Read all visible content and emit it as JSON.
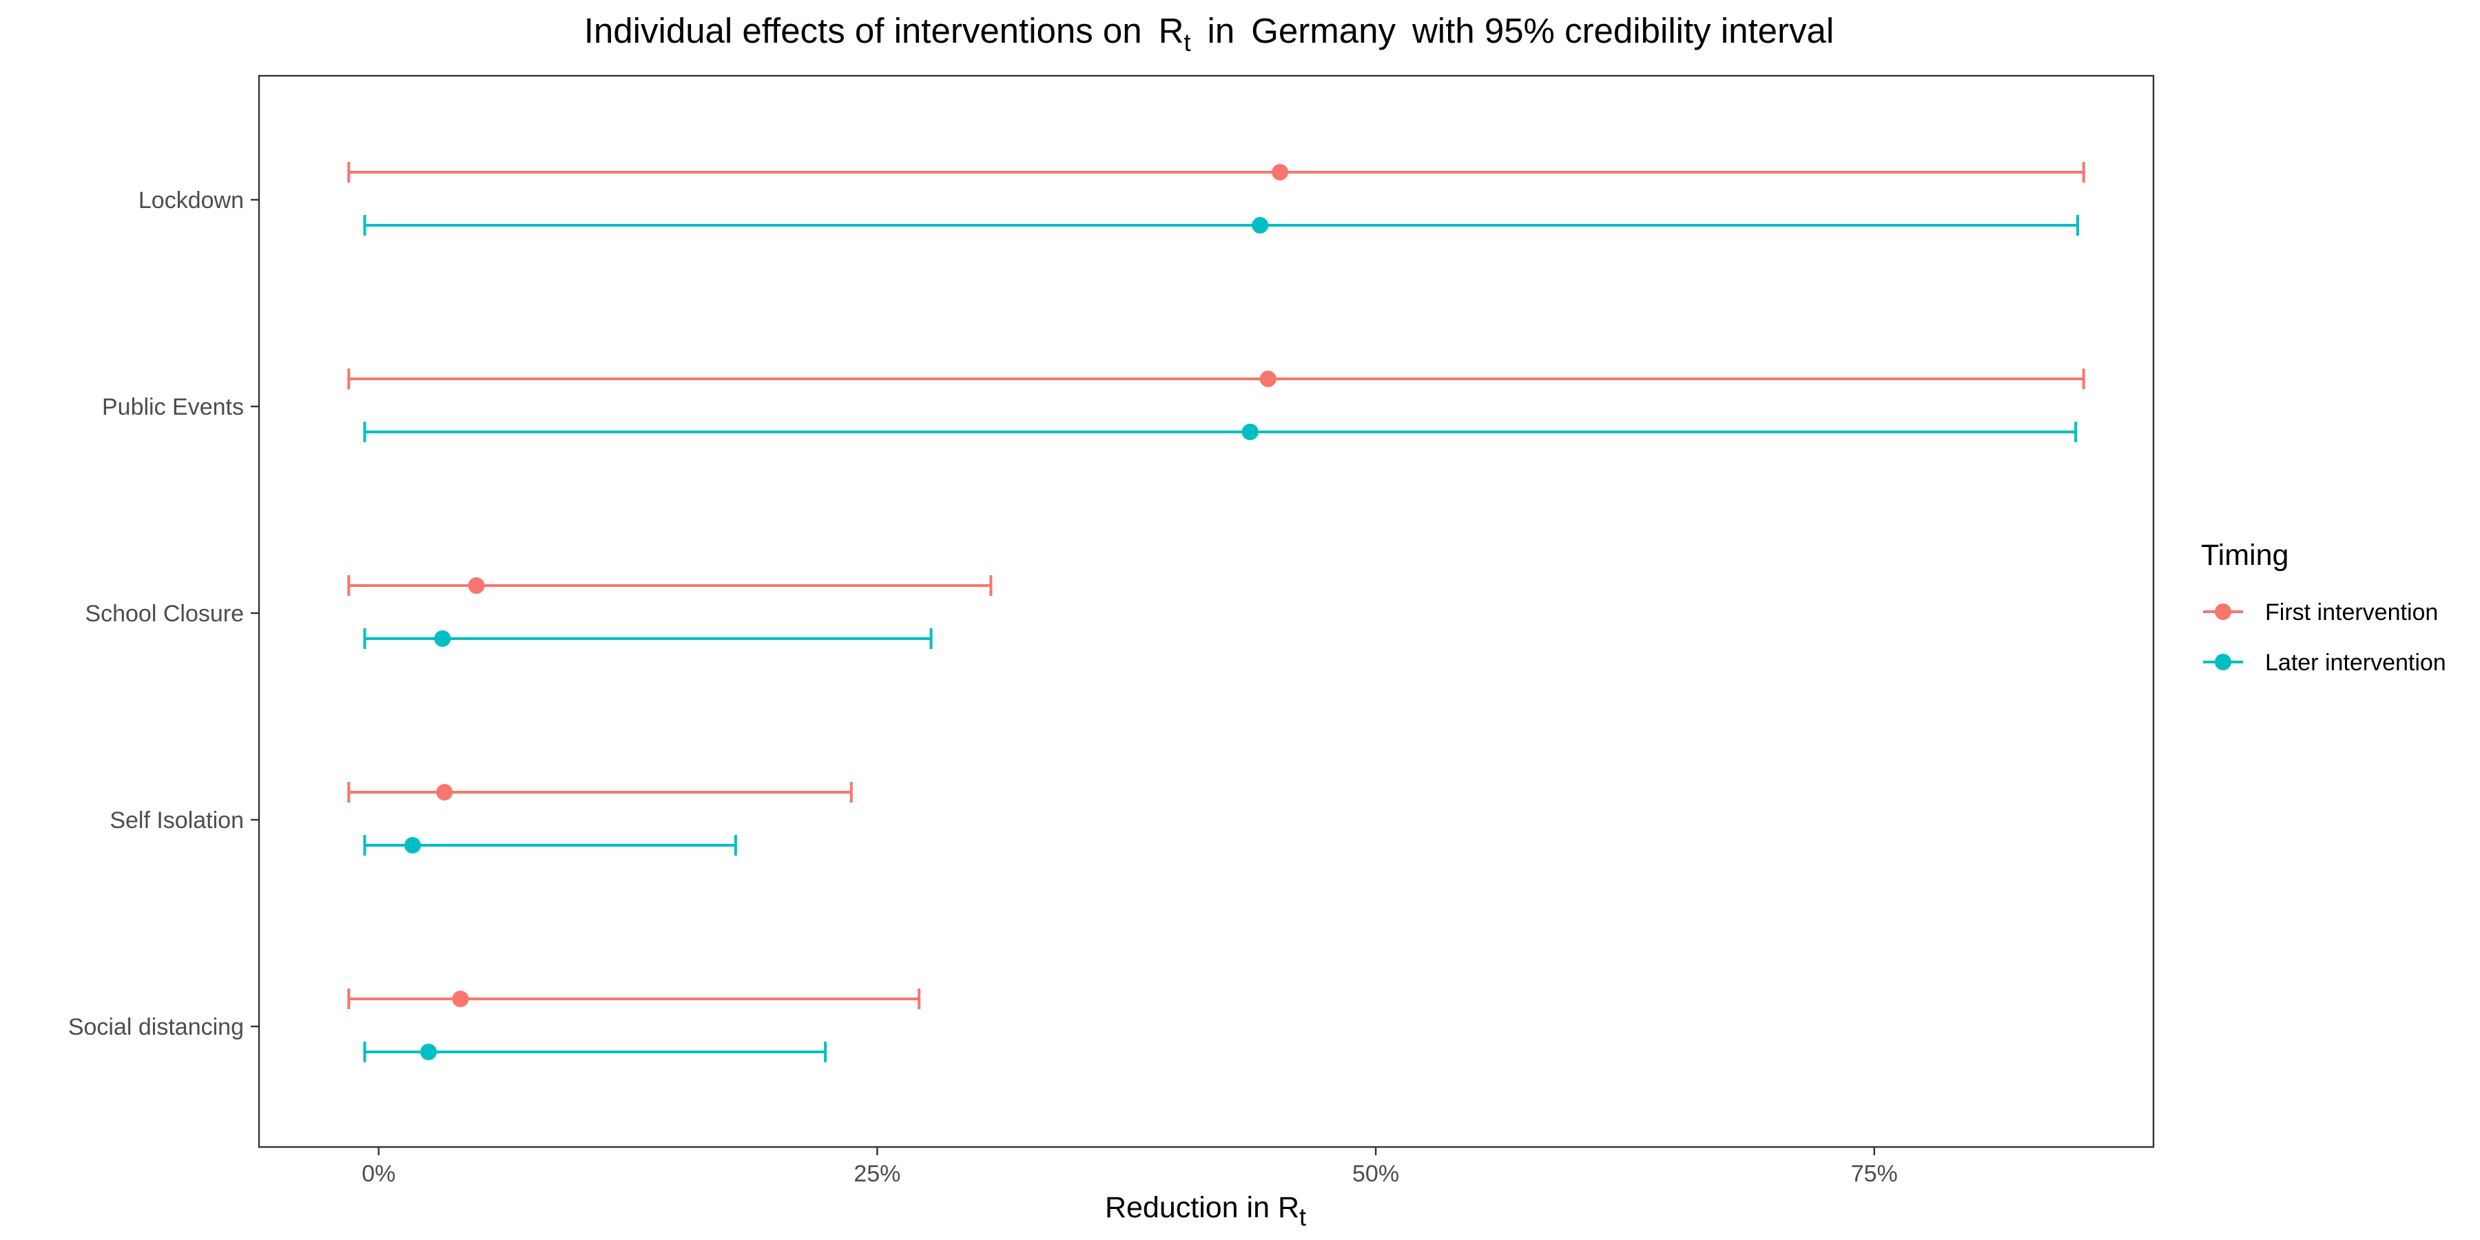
{
  "chart_data": {
    "type": "forest",
    "title": {
      "prefix": "Individual effects of interventions on",
      "r_main": "R",
      "r_sub": "t",
      "in_word": "in",
      "country": "Germany",
      "suffix": "with 95% credibility interval"
    },
    "xlabel": {
      "main": "Reduction in R",
      "sub": "t"
    },
    "ylabel": "",
    "xlim": [
      -6,
      89
    ],
    "x_ticks": [
      {
        "value": 0,
        "label": "0%"
      },
      {
        "value": 25,
        "label": "25%"
      },
      {
        "value": 50,
        "label": "50%"
      },
      {
        "value": 75,
        "label": "75%"
      }
    ],
    "categories": [
      "Lockdown",
      "Public Events",
      "School Closure",
      "Self Isolation",
      "Social distancing"
    ],
    "legend": {
      "title": "Timing",
      "position": "right"
    },
    "grid": false,
    "series": [
      {
        "name": "First intervention",
        "color": "#F8766D",
        "points": [
          {
            "category": "Lockdown",
            "value": 45.2,
            "lower": -1.5,
            "upper": 85.5
          },
          {
            "category": "Public Events",
            "value": 44.6,
            "lower": -1.5,
            "upper": 85.5
          },
          {
            "category": "School Closure",
            "value": 4.9,
            "lower": -1.5,
            "upper": 30.7
          },
          {
            "category": "Self Isolation",
            "value": 3.3,
            "lower": -1.5,
            "upper": 23.7
          },
          {
            "category": "Social distancing",
            "value": 4.1,
            "lower": -1.5,
            "upper": 27.1
          }
        ]
      },
      {
        "name": "Later intervention",
        "color": "#00BFC4",
        "points": [
          {
            "category": "Lockdown",
            "value": 44.2,
            "lower": -0.7,
            "upper": 85.2
          },
          {
            "category": "Public Events",
            "value": 43.7,
            "lower": -0.7,
            "upper": 85.1
          },
          {
            "category": "School Closure",
            "value": 3.2,
            "lower": -0.7,
            "upper": 27.7
          },
          {
            "category": "Self Isolation",
            "value": 1.7,
            "lower": -0.7,
            "upper": 17.9
          },
          {
            "category": "Social distancing",
            "value": 2.5,
            "lower": -0.7,
            "upper": 22.4
          }
        ]
      }
    ]
  }
}
